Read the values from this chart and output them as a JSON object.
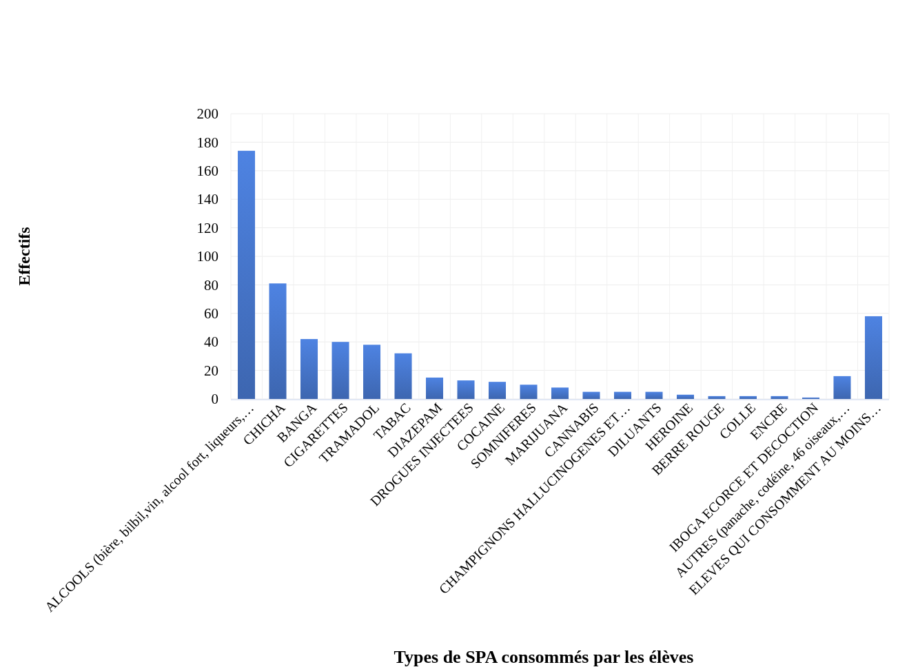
{
  "chart_data": {
    "type": "bar",
    "xlabel": "Types de SPA consommés par les élèves",
    "ylabel": "Effectifs",
    "categories": [
      "ALCOOLS (bière, bilbil,vin, alcool fort, liqueurs,…",
      "CHICHA",
      "BANGA",
      "CIGARETTES",
      "TRAMADOL",
      "TABAC",
      "DIAZEPAM",
      "DROGUES INJECTEES",
      "COCAINE",
      "SOMNIFERES",
      "MARIJUANA",
      "CANNABIS",
      "CHAMPIGNONS HALLUCINOGENES ET…",
      "DILUANTS",
      "HEROINE",
      "BERRE ROUGE",
      "COLLE",
      "ENCRE",
      "IBOGA ECORCE ET DECOCTION",
      "AUTRES (panache, codéine, 46 oiseaux,…",
      "ELEVES QUI CONSOMMENT AU MOINS…"
    ],
    "values": [
      174,
      81,
      42,
      40,
      38,
      32,
      15,
      13,
      12,
      10,
      8,
      5,
      5,
      5,
      3,
      2,
      2,
      2,
      1,
      16,
      58
    ],
    "color": "#4472c4",
    "ylim": [
      0,
      200
    ],
    "yticks": [
      0,
      20,
      40,
      60,
      80,
      100,
      120,
      140,
      160,
      180,
      200
    ],
    "grid": true
  }
}
